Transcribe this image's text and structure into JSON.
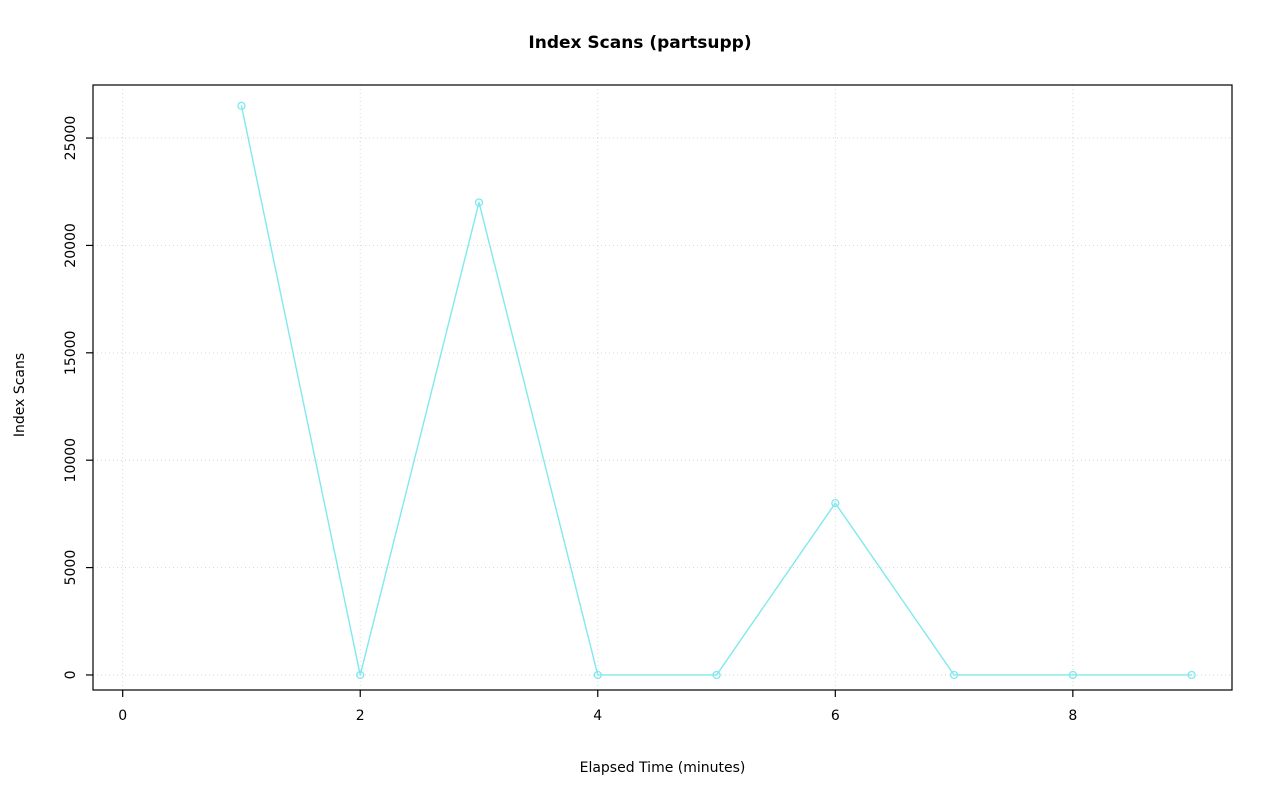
{
  "chart_data": {
    "type": "line",
    "title": "Index Scans (partsupp)",
    "xlabel": "Elapsed Time (minutes)",
    "ylabel": "Index Scans",
    "x": [
      1,
      2,
      3,
      4,
      5,
      6,
      7,
      8,
      9
    ],
    "values": [
      26500,
      0,
      22000,
      0,
      0,
      8000,
      0,
      0,
      0
    ],
    "x_ticks": [
      0,
      2,
      4,
      6,
      8
    ],
    "y_ticks": [
      0,
      5000,
      10000,
      15000,
      20000,
      25000
    ],
    "xlim": [
      -0.25,
      9.34
    ],
    "ylim": [
      -700,
      27470
    ],
    "grid": true,
    "legend": "none",
    "marker": "open-circle",
    "line_color": "#7fe9ee",
    "grid_color": "#d6d6d6",
    "box_color": "#000000",
    "background_color": "#ffffff"
  }
}
